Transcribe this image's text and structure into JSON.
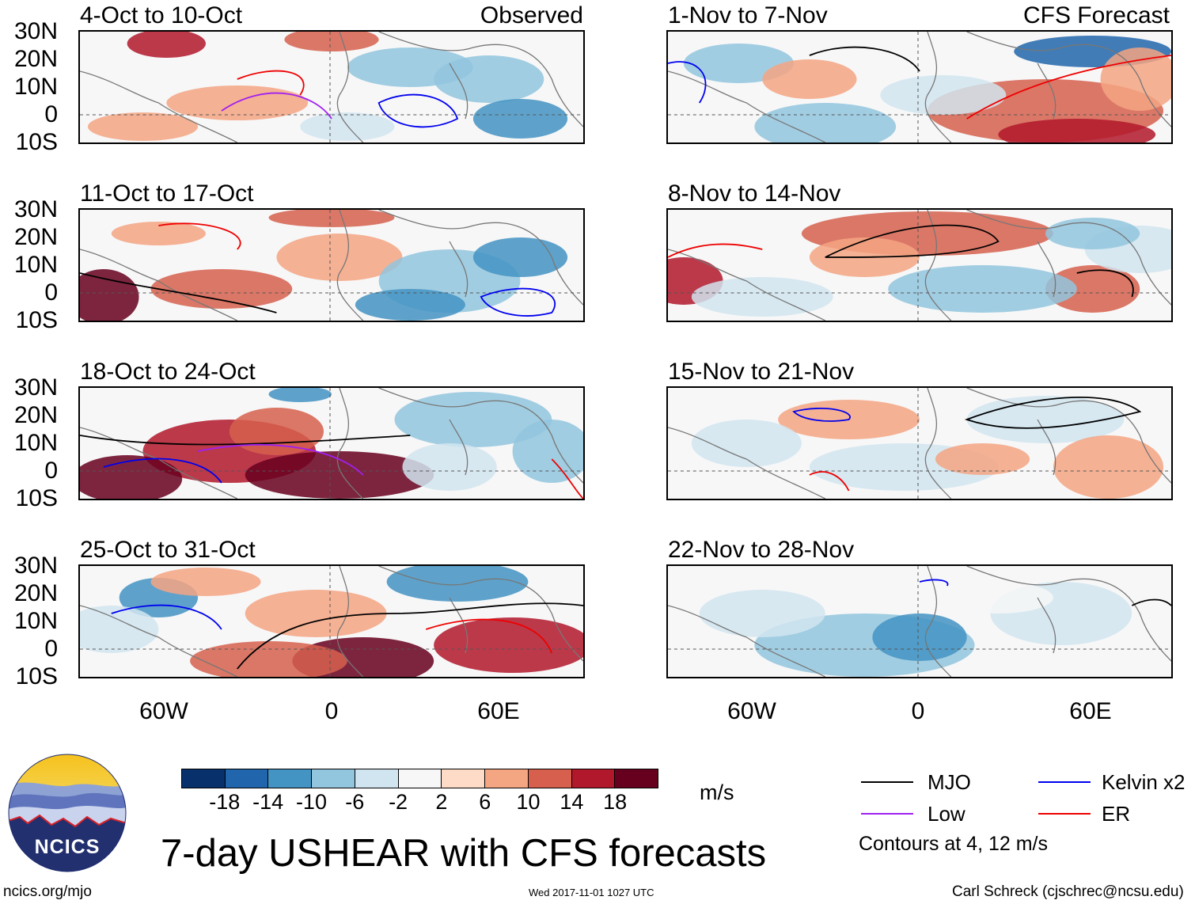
{
  "panels": {
    "observed": [
      {
        "title": "4-Oct to 10-Oct",
        "tag": "Observed"
      },
      {
        "title": "11-Oct to 17-Oct",
        "tag": ""
      },
      {
        "title": "18-Oct to 24-Oct",
        "tag": ""
      },
      {
        "title": "25-Oct to 31-Oct",
        "tag": ""
      }
    ],
    "forecast": [
      {
        "title": "1-Nov to 7-Nov",
        "tag": "CFS Forecast"
      },
      {
        "title": "8-Nov to 14-Nov",
        "tag": ""
      },
      {
        "title": "15-Nov to 21-Nov",
        "tag": ""
      },
      {
        "title": "22-Nov to 28-Nov",
        "tag": ""
      }
    ]
  },
  "axes": {
    "lat_labels": [
      "30N",
      "20N",
      "10N",
      "0",
      "10S"
    ],
    "lon_labels": [
      "60W",
      "0",
      "60E"
    ]
  },
  "colorbar": {
    "labels": [
      "-18",
      "-14",
      "-10",
      "-6",
      "-2",
      "2",
      "6",
      "10",
      "14",
      "18"
    ],
    "unit": "m/s",
    "colors": [
      "#08306b",
      "#2166ac",
      "#4393c3",
      "#92c5de",
      "#d1e5f0",
      "#f7f7f7",
      "#fddbc7",
      "#f4a582",
      "#d6604d",
      "#b2182b",
      "#67001f"
    ]
  },
  "legend": {
    "items": [
      {
        "label": "MJO",
        "color": "#000000"
      },
      {
        "label": "Kelvin x2",
        "color": "#0000ee"
      },
      {
        "label": "Low",
        "color": "#a020f0"
      },
      {
        "label": "ER",
        "color": "#ee0000"
      }
    ],
    "note": "Contours at 4, 12 m/s"
  },
  "logo": {
    "text": "NCICS"
  },
  "title": "7-day USHEAR with CFS forecasts",
  "footer": {
    "left": "ncics.org/mjo",
    "center": "Wed 2017-11-01 1027 UTC",
    "right": "Carl Schreck (cjschrec@ncsu.edu)"
  }
}
